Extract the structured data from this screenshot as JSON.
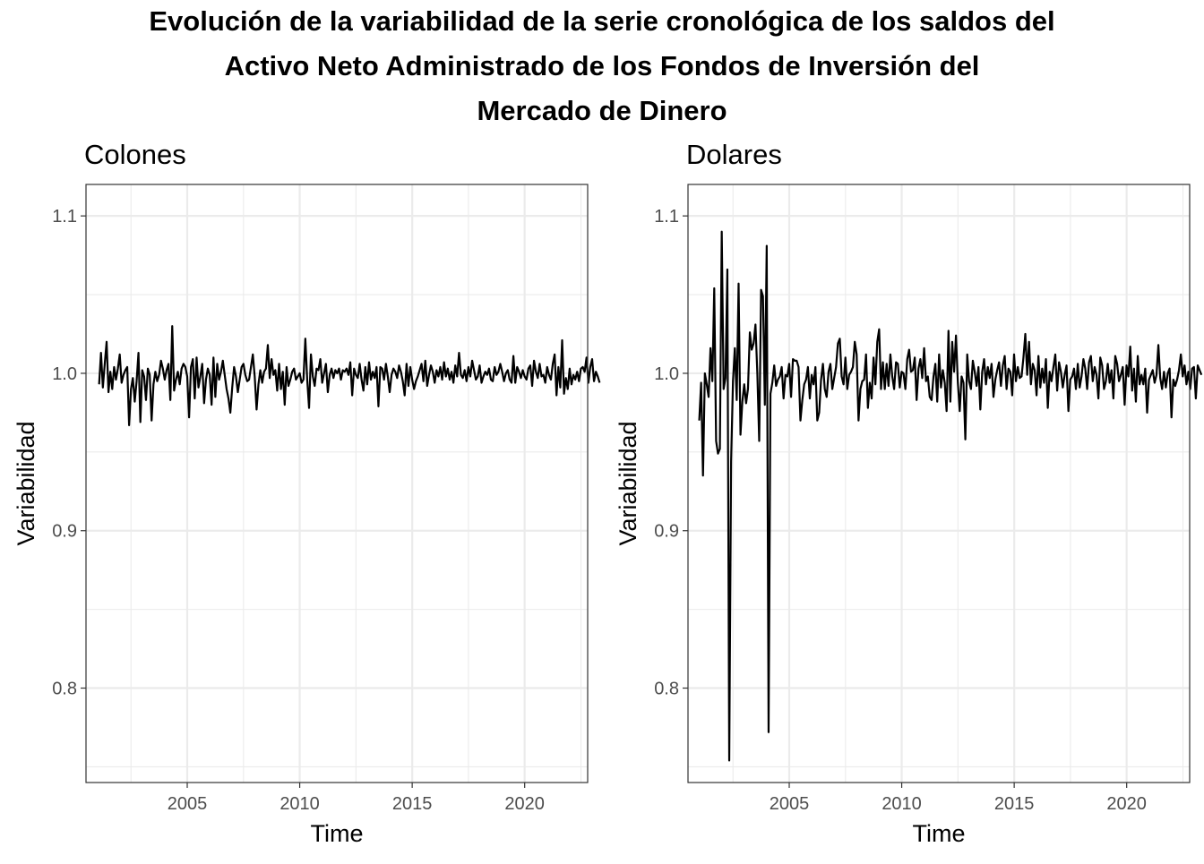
{
  "title_lines": [
    "Evolución de la variabilidad de la serie cronológica de los saldos del",
    "Activo Neto Administrado de los Fondos de Inversión del",
    "Mercado de Dinero"
  ],
  "chart_data": [
    {
      "type": "line",
      "title": "Colones",
      "xlabel": "Time",
      "ylabel": "Variabilidad",
      "xlim": [
        2000.5,
        2022.8
      ],
      "ylim": [
        0.74,
        1.12
      ],
      "x_ticks": [
        2005,
        2010,
        2015,
        2020
      ],
      "x_tick_labels": [
        "2005",
        "2010",
        "2015",
        "2020"
      ],
      "y_ticks": [
        0.8,
        0.9,
        1.0,
        1.1
      ],
      "y_tick_labels": [
        "0.8",
        "0.9",
        "1.0",
        "1.1"
      ],
      "grid": true,
      "series": [
        {
          "x_start": 2001.083,
          "x_step": 0.08333,
          "color": "#000000",
          "values": [
            0.993,
            1.013,
            0.991,
            1.006,
            1.02,
            0.988,
            1.001,
            0.99,
            1.004,
            0.996,
            1.003,
            1.012,
            0.994,
            0.999,
            1.002,
            1.004,
            0.967,
            0.99,
            0.997,
            0.982,
            0.995,
            1.013,
            0.969,
            1.002,
            0.998,
            0.983,
            1.003,
            0.999,
            0.97,
            0.993,
            1.001,
            0.995,
            0.999,
            1.008,
            1.003,
            0.996,
            1.002,
            1.006,
            0.983,
            1.03,
            0.989,
            0.996,
            1.001,
            0.993,
            1.003,
            1.006,
            1.004,
            0.998,
            0.972,
            1.004,
            1.009,
            0.984,
            1.01,
            0.991,
            0.998,
            1.006,
            0.981,
            0.996,
            1.003,
            0.999,
            0.98,
            1.01,
            0.985,
            1.006,
            0.996,
            1.001,
            1.008,
            0.999,
            0.99,
            0.984,
            0.975,
            0.991,
            1.004,
            0.998,
            0.988,
            0.996,
            1.004,
            1.006,
            0.999,
            0.995,
            0.996,
            1.004,
            1.012,
            0.998,
            0.977,
            0.993,
            1.002,
            0.994,
            1.001,
            1.003,
            1.018,
            0.997,
            1.009,
            0.999,
            1.002,
            0.989,
            1.006,
            0.99,
            1.001,
            0.98,
            1.004,
            0.992,
            0.996,
            1.001,
            1.003,
            0.996,
            0.998,
            1.0,
            0.994,
            0.996,
            1.022,
            0.996,
            0.978,
            1.012,
            0.998,
            0.992,
            1.003,
            1.002,
            1.009,
            0.994,
            1.0,
            1.006,
            0.988,
            0.999,
            1.003,
            0.997,
            1.002,
            1.0,
            1.003,
            0.996,
            1.002,
            1.001,
            1.003,
            0.999,
            1.007,
            0.986,
            1.003,
            0.999,
            0.997,
            1.006,
            0.996,
            0.989,
            1.004,
            0.993,
            1.007,
            0.996,
            1.001,
            0.997,
            1.004,
            0.979,
            1.004,
            1.003,
            0.996,
            1.006,
            0.998,
            0.988,
            0.999,
            1.003,
            1.001,
            0.997,
            1.005,
            1.001,
            0.995,
            0.986,
            1.006,
            0.992,
            1.004,
            0.996,
            0.99,
            0.995,
            0.998,
            1.002,
            1.006,
            0.995,
            1.008,
            0.992,
            0.999,
            1.005,
            1.001,
            0.994,
            1.002,
            0.998,
            1.004,
            0.996,
            1.007,
            0.998,
            1.003,
            0.996,
            1.001,
            0.994,
            1.005,
            0.998,
            1.013,
            0.999,
            0.997,
            1.002,
            0.995,
            1.004,
            0.998,
            1.008,
            1.002,
            0.996,
            0.998,
            1.005,
            0.994,
            0.998,
            1.001,
            0.999,
            1.003,
            0.996,
            0.995,
            1.004,
            0.999,
            1.001,
            1.006,
            1.001,
            0.995,
            1.0,
            1.002,
            0.996,
            0.994,
            1.011,
            0.994,
            1.004,
            1.001,
            0.997,
            1.002,
            0.998,
            0.996,
            1.003,
            1.005,
            0.992,
            1.008,
            1.001,
            0.997,
            1.006,
            0.998,
            0.999,
            0.994,
            1.004,
            0.999,
            0.996,
            1.006,
            1.012,
            0.986,
            1.004,
            0.991,
            1.021,
            0.987,
            0.997,
            0.99,
            1.003,
            0.993,
            0.999,
            0.996,
            1.001,
            0.995,
            1.003,
            1.004,
            1.001,
            1.01,
            0.994,
            1.004,
            1.009,
            0.995,
            1.001,
            0.998,
            0.994
          ]
        }
      ]
    },
    {
      "type": "line",
      "title": "Dolares",
      "xlabel": "Time",
      "ylabel": "Variabilidad",
      "xlim": [
        2000.5,
        2022.8
      ],
      "ylim": [
        0.74,
        1.12
      ],
      "x_ticks": [
        2005,
        2010,
        2015,
        2020
      ],
      "x_tick_labels": [
        "2005",
        "2010",
        "2015",
        "2020"
      ],
      "y_ticks": [
        0.8,
        0.9,
        1.0,
        1.1
      ],
      "y_tick_labels": [
        "0.8",
        "0.9",
        "1.0",
        "1.1"
      ],
      "grid": true,
      "series": [
        {
          "x_start": 2001.0,
          "x_step": 0.0833,
          "color": "#000000",
          "values": [
            0.97,
            0.994,
            0.935,
            1.0,
            0.993,
            0.985,
            1.016,
            0.995,
            1.054,
            0.957,
            0.949,
            0.952,
            1.09,
            0.99,
            0.997,
            1.066,
            0.754,
            0.944,
            0.995,
            1.016,
            0.983,
            1.057,
            0.961,
            0.982,
            0.993,
            0.981,
            0.99,
            1.026,
            1.015,
            1.019,
            1.031,
            1.0,
            0.957,
            1.053,
            1.049,
            0.98,
            1.081,
            0.772,
            0.987,
            0.994,
            1.005,
            0.992,
            0.996,
            0.998,
            1.004,
            0.984,
            0.999,
            0.998,
            1.006,
            0.985,
            1.009,
            1.008,
            1.008,
            1.004,
            0.97,
            0.983,
            0.993,
            0.996,
            1.004,
            0.984,
            0.999,
            0.993,
            1.004,
            0.97,
            0.975,
            0.996,
            1.006,
            0.99,
            0.985,
            1.001,
            1.006,
            0.99,
            0.997,
            1.004,
            1.019,
            1.022,
            0.998,
            0.993,
            1.01,
            0.99,
            0.999,
            1.001,
            1.004,
            1.02,
            1.012,
            0.97,
            0.99,
            0.995,
            0.996,
            1.012,
            0.978,
            0.994,
            0.984,
            1.01,
            0.993,
            1.02,
            1.028,
            0.99,
            1.007,
            0.99,
            1.006,
            0.992,
            1.012,
            0.998,
            0.99,
            1.007,
            1.006,
            0.991,
            1.001,
            1.0,
            0.99,
            1.009,
            1.015,
            1.001,
            1.002,
            1.01,
            0.983,
            1.003,
            1.009,
            0.997,
            1.016,
            0.995,
            0.998,
            0.985,
            0.983,
            0.998,
            1.006,
            0.982,
            1.012,
            0.991,
            1.002,
            0.994,
            0.976,
            1.027,
            0.982,
            1.02,
            1.001,
            1.024,
            0.994,
            0.976,
            0.998,
            0.994,
            0.958,
            1.012,
            0.995,
            0.99,
            1.008,
            1.001,
            0.992,
            1.004,
            0.977,
            1.001,
            1.009,
            0.993,
            1.004,
            0.997,
            1.006,
            0.985,
            0.996,
            1.002,
            1.007,
            0.992,
            1.005,
            1.011,
            0.99,
            1.003,
            1.001,
            0.986,
            1.012,
            0.995,
            1.004,
            0.997,
            0.998,
            1.01,
            1.025,
            0.999,
            1.02,
            0.993,
            1.006,
            1.002,
            0.986,
            1.011,
            0.991,
            1.003,
            0.994,
            1.009,
            0.978,
            1.001,
            0.995,
            1.004,
            1.012,
            0.989,
            1.007,
            1.001,
            0.991,
            0.999,
            1.005,
            0.976,
            0.996,
            0.998,
            1.003,
            0.99,
            1.006,
            0.991,
            0.998,
            1.009,
            1.003,
            0.99,
            1.007,
            1.011,
            0.995,
            1.004,
            0.999,
            0.984,
            1.01,
            1.005,
            0.99,
            0.995,
            1.006,
            0.994,
            1.002,
            0.984,
            1.011,
            1.006,
            0.995,
            0.999,
            1.004,
            0.98,
            1.005,
            0.998,
            1.017,
            0.989,
            1.003,
            0.982,
            1.011,
            0.993,
            0.999,
            0.993,
            1.003,
            0.975,
            0.996,
            0.999,
            1.002,
            0.994,
            0.999,
            1.018,
            0.997,
            0.99,
            1.001,
            0.991,
            1.0,
            1.003,
            0.972,
            0.996,
            0.992,
            0.996,
            1.002,
            1.012,
            0.998,
            1.005,
            0.993,
            1.001,
            0.99,
            1.003,
            1.004,
            0.984,
            1.005,
            1.002,
            0.999
          ]
        }
      ]
    }
  ]
}
